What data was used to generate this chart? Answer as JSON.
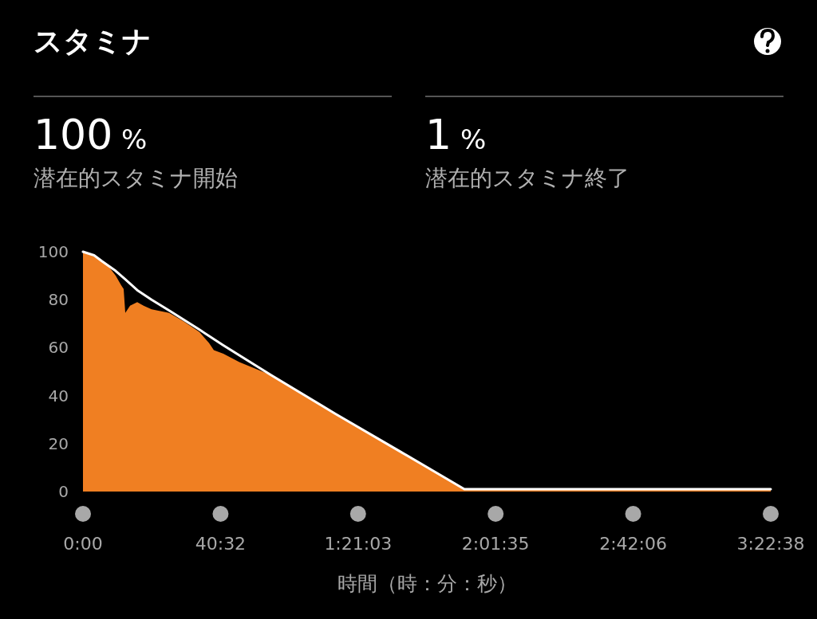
{
  "chart_data": {
    "type": "area",
    "title": "スタミナ",
    "annotations": [
      "100 %",
      "潜在的スタミナ開始",
      "1 %",
      "潜在的スタミナ終了"
    ],
    "xlabel": "時間（時：分：秒）",
    "xlim": [
      0,
      12158
    ],
    "xticks": [
      {
        "value": 0,
        "label": "0:00"
      },
      {
        "value": 2432,
        "label": "40:32"
      },
      {
        "value": 4863,
        "label": "1:21:03"
      },
      {
        "value": 7295,
        "label": "2:01:35"
      },
      {
        "value": 9726,
        "label": "2:42:06"
      },
      {
        "value": 12158,
        "label": "3:22:38"
      }
    ],
    "ylim": [
      0,
      100
    ],
    "yticks": [
      0,
      20,
      40,
      60,
      80,
      100
    ],
    "series": [
      {
        "type": "area",
        "color": "#f07f22",
        "x": [
          0,
          197,
          338,
          465,
          578,
          677,
          719,
          748,
          832,
          959,
          1072,
          1213,
          1523,
          1777,
          2059,
          2228,
          2313,
          2482,
          2764,
          3329,
          4457,
          5585,
          6742,
          12158
        ],
        "values": [
          100,
          98,
          96,
          93.5,
          90,
          86,
          84.5,
          74.5,
          77.5,
          79,
          77.5,
          76,
          74.5,
          71,
          66.5,
          62,
          59,
          57.5,
          54,
          48.5,
          32.5,
          17,
          1,
          1
        ]
      },
      {
        "type": "line",
        "color": "#ffffff",
        "x": [
          0,
          197,
          338,
          578,
          748,
          959,
          1213,
          1523,
          2059,
          2482,
          3329,
          4457,
          5585,
          6742,
          12158
        ],
        "values": [
          100,
          98.5,
          96,
          92,
          88.5,
          84,
          80,
          75.5,
          67.5,
          61,
          48.5,
          32.5,
          17,
          1,
          1
        ]
      }
    ]
  }
}
